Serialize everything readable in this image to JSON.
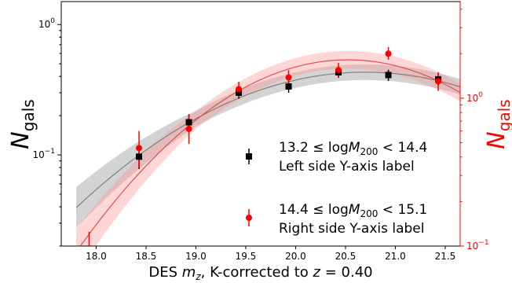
{
  "chart_data": {
    "type": "scatter",
    "xlabel": "DES $m_z$, K-corrected to $z = 0.40$",
    "xlabel_parts": {
      "pre": "DES ",
      "m": "m",
      "sub": "z",
      "mid": ", K-corrected to ",
      "z": "z",
      "post": " = 0.40"
    },
    "ylabel_left": {
      "N": "N",
      "sub": "gals"
    },
    "ylabel_right": {
      "N": "N",
      "sub": "gals"
    },
    "xlim": [
      17.65,
      21.65
    ],
    "x_ticks": [
      18.0,
      18.5,
      19.0,
      19.5,
      20.0,
      20.5,
      21.0,
      21.5
    ],
    "x_tick_labels": [
      "18.0",
      "18.5",
      "19.0",
      "19.5",
      "20.0",
      "20.5",
      "21.0",
      "21.5"
    ],
    "ylim_left": [
      0.02,
      1.5
    ],
    "yscale_left": "log",
    "y_ticks_left": [
      {
        "v": 1.0,
        "base": "10",
        "exp": "0"
      },
      {
        "v": 0.1,
        "base": "10",
        "exp": "−1"
      }
    ],
    "ylim_right": [
      0.1,
      4.5
    ],
    "yscale_right": "log",
    "y_ticks_right": [
      {
        "v": 1.0,
        "base": "10",
        "exp": "0"
      },
      {
        "v": 0.1,
        "base": "10",
        "exp": "−1"
      }
    ],
    "right_axis_color": "#ff0000",
    "series": [
      {
        "name": "13.2 ≤ logM200 < 14.4",
        "legend_line1": {
          "pre": "13.2 ≤ log",
          "M": "M",
          "sub": "200",
          "post": " < 14.4"
        },
        "legend_line2": "Left side Y-axis label",
        "axis": "left",
        "marker": "square",
        "color": "#000000",
        "x": [
          18.43,
          18.93,
          19.43,
          19.93,
          20.43,
          20.93,
          21.43
        ],
        "y": [
          0.097,
          0.178,
          0.3,
          0.335,
          0.43,
          0.41,
          0.38
        ],
        "yerr_low": [
          0.078,
          0.153,
          0.27,
          0.3,
          0.39,
          0.37,
          0.34
        ],
        "yerr_high": [
          0.118,
          0.205,
          0.33,
          0.37,
          0.47,
          0.45,
          0.42
        ],
        "fit_color": "#808080",
        "band_color": "#808080"
      },
      {
        "name": "14.4 ≤ logM200 < 15.1",
        "legend_line1": {
          "pre": "14.4 ≤ log",
          "M": "M",
          "sub": "200",
          "post": " < 15.1"
        },
        "legend_line2": "Right side Y-axis label",
        "axis": "right",
        "marker": "circle",
        "color": "#ff0000",
        "x": [
          17.93,
          18.43,
          18.93,
          19.43,
          19.93,
          20.43,
          20.93,
          21.43
        ],
        "y": [
          0.095,
          0.46,
          0.62,
          1.15,
          1.38,
          1.55,
          2.0,
          1.3
        ],
        "yerr_low": [
          0.07,
          0.34,
          0.49,
          1.02,
          1.22,
          1.37,
          1.82,
          1.12
        ],
        "yerr_high": [
          0.125,
          0.6,
          0.77,
          1.29,
          1.55,
          1.73,
          2.22,
          1.5
        ],
        "fit_color": "#e05050",
        "band_color": "#ff9999"
      }
    ],
    "legend_position": "center-right",
    "grid": false
  }
}
